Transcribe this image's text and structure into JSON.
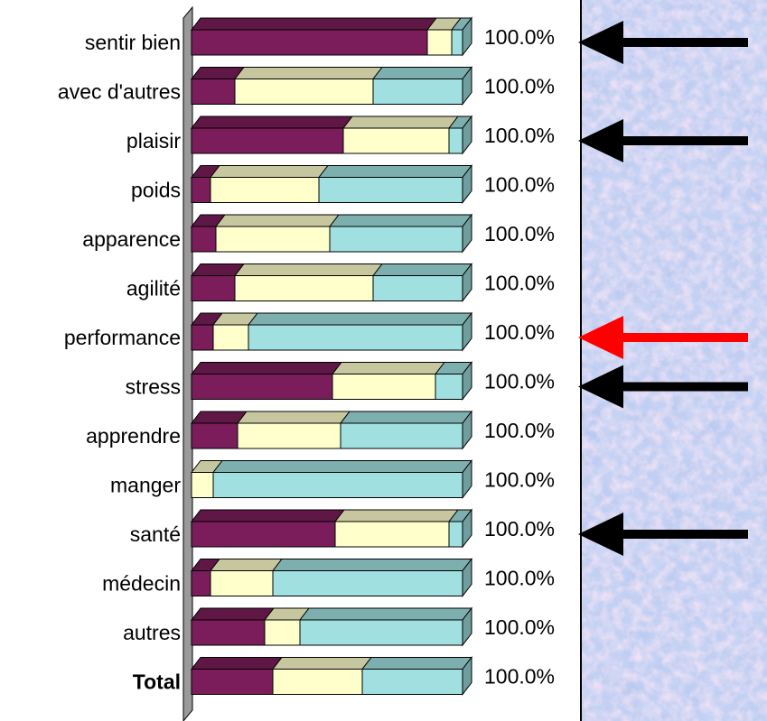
{
  "chart_data": {
    "type": "bar",
    "orientation": "horizontal",
    "stacked": "100%",
    "three_d": true,
    "categories": [
      "sentir bien",
      "avec d'autres",
      "plaisir",
      "poids",
      "apparence",
      "agilité",
      "performance",
      "stress",
      "apprendre",
      "manger",
      "santé",
      "médecin",
      "autres",
      "Total"
    ],
    "bold_categories": [
      "Total"
    ],
    "series": [
      {
        "color": "#7a1d5a",
        "values": [
          87,
          16,
          56,
          7,
          9,
          16,
          8,
          52,
          17,
          0,
          53,
          7,
          27,
          30
        ]
      },
      {
        "color": "#ffffcc",
        "values": [
          9,
          51,
          39,
          40,
          42,
          51,
          13,
          38,
          38,
          8,
          42,
          23,
          13,
          33
        ]
      },
      {
        "color": "#a0e0e0",
        "values": [
          4,
          33,
          5,
          53,
          49,
          33,
          79,
          10,
          45,
          92,
          5,
          70,
          60,
          37
        ]
      }
    ],
    "totals_labels": [
      "100.0%",
      "100.0%",
      "100.0%",
      "100.0%",
      "100.0%",
      "100.0%",
      "100.0%",
      "100.0%",
      "100.0%",
      "100.0%",
      "100.0%",
      "100.0%",
      "100.0%",
      "100.0%"
    ],
    "xlim": [
      0,
      100
    ],
    "grid": false,
    "legend": "none"
  },
  "annotations": {
    "arrows": [
      {
        "category": "sentir bien",
        "color": "#000000"
      },
      {
        "category": "plaisir",
        "color": "#000000"
      },
      {
        "category": "performance",
        "color": "#ff0000"
      },
      {
        "category": "stress",
        "color": "#000000"
      },
      {
        "category": "santé",
        "color": "#000000"
      }
    ],
    "side_panel": {
      "texture": "blue-pink marble",
      "base_color": "#b8c8f0"
    }
  }
}
